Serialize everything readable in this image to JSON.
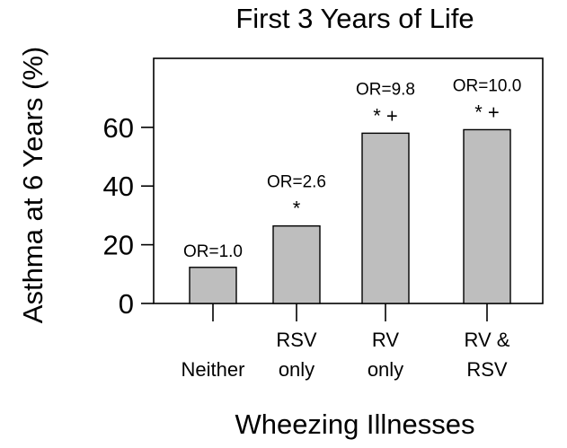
{
  "chart_data": {
    "type": "bar",
    "title": "First 3 Years of Life",
    "xlabel": "Wheezing Illnesses",
    "ylabel": "Asthma at 6 Years (%)",
    "ylim": [
      0,
      83.5
    ],
    "yticks": [
      0,
      20,
      40,
      60
    ],
    "grid": false,
    "categories": [
      [
        "Neither"
      ],
      [
        "RSV",
        "only"
      ],
      [
        "RV",
        "only"
      ],
      [
        "RV &",
        "RSV"
      ]
    ],
    "values": [
      12.3,
      26.4,
      58.0,
      59.2
    ],
    "annotations": [
      {
        "or": "OR=1.0",
        "sig": ""
      },
      {
        "or": "OR=2.6",
        "sig": "*"
      },
      {
        "or": "OR=9.8",
        "sig": "* +"
      },
      {
        "or": "OR=10.0",
        "sig": "* +"
      }
    ],
    "colors": {
      "bar": "#bebebe",
      "edge": "#000000"
    }
  }
}
